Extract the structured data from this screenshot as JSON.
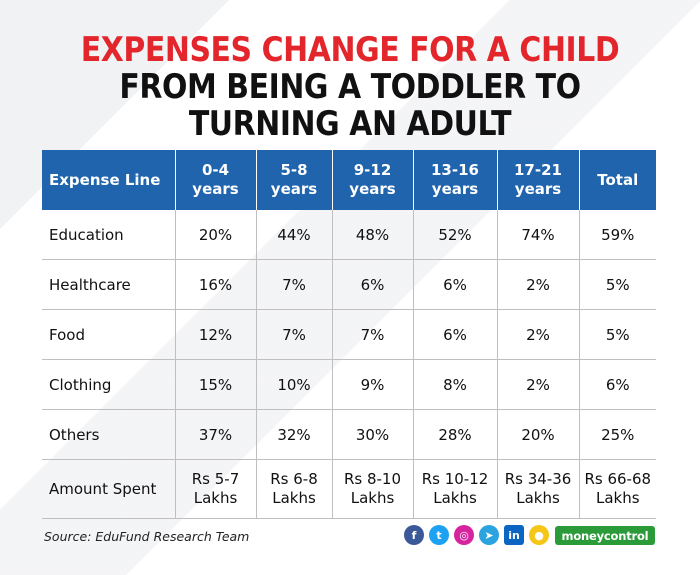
{
  "title": {
    "line1": "EXPENSES CHANGE FOR A CHILD",
    "line2": "FROM BEING A TODDLER TO",
    "line3": "TURNING AN ADULT"
  },
  "table": {
    "headers": [
      {
        "l1": "Expense Line",
        "l2": ""
      },
      {
        "l1": "0-4",
        "l2": "years"
      },
      {
        "l1": "5-8",
        "l2": "years"
      },
      {
        "l1": "9-12",
        "l2": "years"
      },
      {
        "l1": "13-16",
        "l2": "years"
      },
      {
        "l1": "17-21",
        "l2": "years"
      },
      {
        "l1": "Total",
        "l2": ""
      }
    ],
    "rows": [
      [
        "Education",
        "20%",
        "44%",
        "48%",
        "52%",
        "74%",
        "59%"
      ],
      [
        "Healthcare",
        "16%",
        "7%",
        "6%",
        "6%",
        "2%",
        "5%"
      ],
      [
        "Food",
        "12%",
        "7%",
        "7%",
        "6%",
        "2%",
        "5%"
      ],
      [
        "Clothing",
        "15%",
        "10%",
        "9%",
        "8%",
        "2%",
        "6%"
      ],
      [
        "Others",
        "37%",
        "32%",
        "30%",
        "28%",
        "20%",
        "25%"
      ]
    ],
    "amount_row": [
      {
        "l1": "Amount Spent",
        "l2": ""
      },
      {
        "l1": "Rs 5-7",
        "l2": "Lakhs"
      },
      {
        "l1": "Rs 6-8",
        "l2": "Lakhs"
      },
      {
        "l1": "Rs 8-10",
        "l2": "Lakhs"
      },
      {
        "l1": "Rs 10-12",
        "l2": "Lakhs"
      },
      {
        "l1": "Rs 34-36",
        "l2": "Lakhs"
      },
      {
        "l1": "Rs 66-68",
        "l2": "Lakhs"
      }
    ]
  },
  "footer": {
    "source": "Source: EduFund Research Team",
    "brand": "moneycontrol",
    "social_icons": [
      {
        "name": "facebook-icon",
        "glyph": "f",
        "color": "#3b5998"
      },
      {
        "name": "twitter-icon",
        "glyph": "t",
        "color": "#1da1f2"
      },
      {
        "name": "instagram-icon",
        "glyph": "◎",
        "color": "#d6249f"
      },
      {
        "name": "telegram-icon",
        "glyph": "➤",
        "color": "#2aa3df"
      },
      {
        "name": "linkedin-icon",
        "glyph": "in",
        "color": "#0a66c2"
      },
      {
        "name": "koo-icon",
        "glyph": "●",
        "color": "#f5c518"
      }
    ]
  },
  "colors": {
    "title_red": "#e3262c",
    "header_blue": "#1f64ad",
    "brand_green": "#2b9b3a"
  }
}
